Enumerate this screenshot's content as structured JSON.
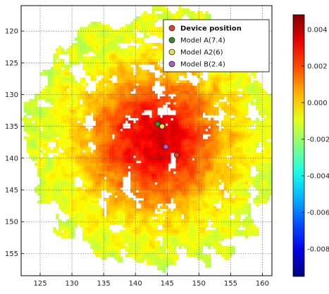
{
  "chart_data": {
    "type": "heatmap",
    "title": "",
    "xlabel": "",
    "ylabel": "",
    "x_ticks": [
      "125",
      "130",
      "135",
      "140",
      "145",
      "150",
      "155",
      "160"
    ],
    "y_ticks": [
      "120",
      "125",
      "130",
      "135",
      "140",
      "145",
      "150",
      "155"
    ],
    "xlim": [
      122,
      161.5
    ],
    "ylim": [
      158.5,
      116
    ],
    "y_inverted": true,
    "grid": true,
    "legend_placement": "top-right",
    "colorbar": {
      "colormap": "jet",
      "range": [
        -0.0095,
        0.0048
      ],
      "ticks": [
        "0.004",
        "0.002",
        "0.000",
        "-0.002",
        "-0.004",
        "-0.006",
        "-0.008"
      ],
      "tick_values": [
        0.004,
        0.002,
        0.0,
        -0.002,
        -0.004,
        -0.006,
        -0.008
      ]
    },
    "field": {
      "center": [
        143,
        137
      ],
      "coverage_radius": 20,
      "peak_value": 0.0035,
      "edge_value": -0.0012
    },
    "series": [
      {
        "name": "Device position",
        "x": 146.5,
        "y": 139.5,
        "color": "#d1472c",
        "bold": true
      },
      {
        "name": "Model A(7.4)",
        "x": 143.5,
        "y": 134.6,
        "color": "#3c8a2e",
        "bold": false
      },
      {
        "name": "Model A2(6)",
        "x": 144.2,
        "y": 135.0,
        "color": "#e8e34a",
        "bold": false
      },
      {
        "name": "Model B(2.4)",
        "x": 144.8,
        "y": 138.2,
        "color": "#b45bc8",
        "bold": false
      }
    ]
  }
}
